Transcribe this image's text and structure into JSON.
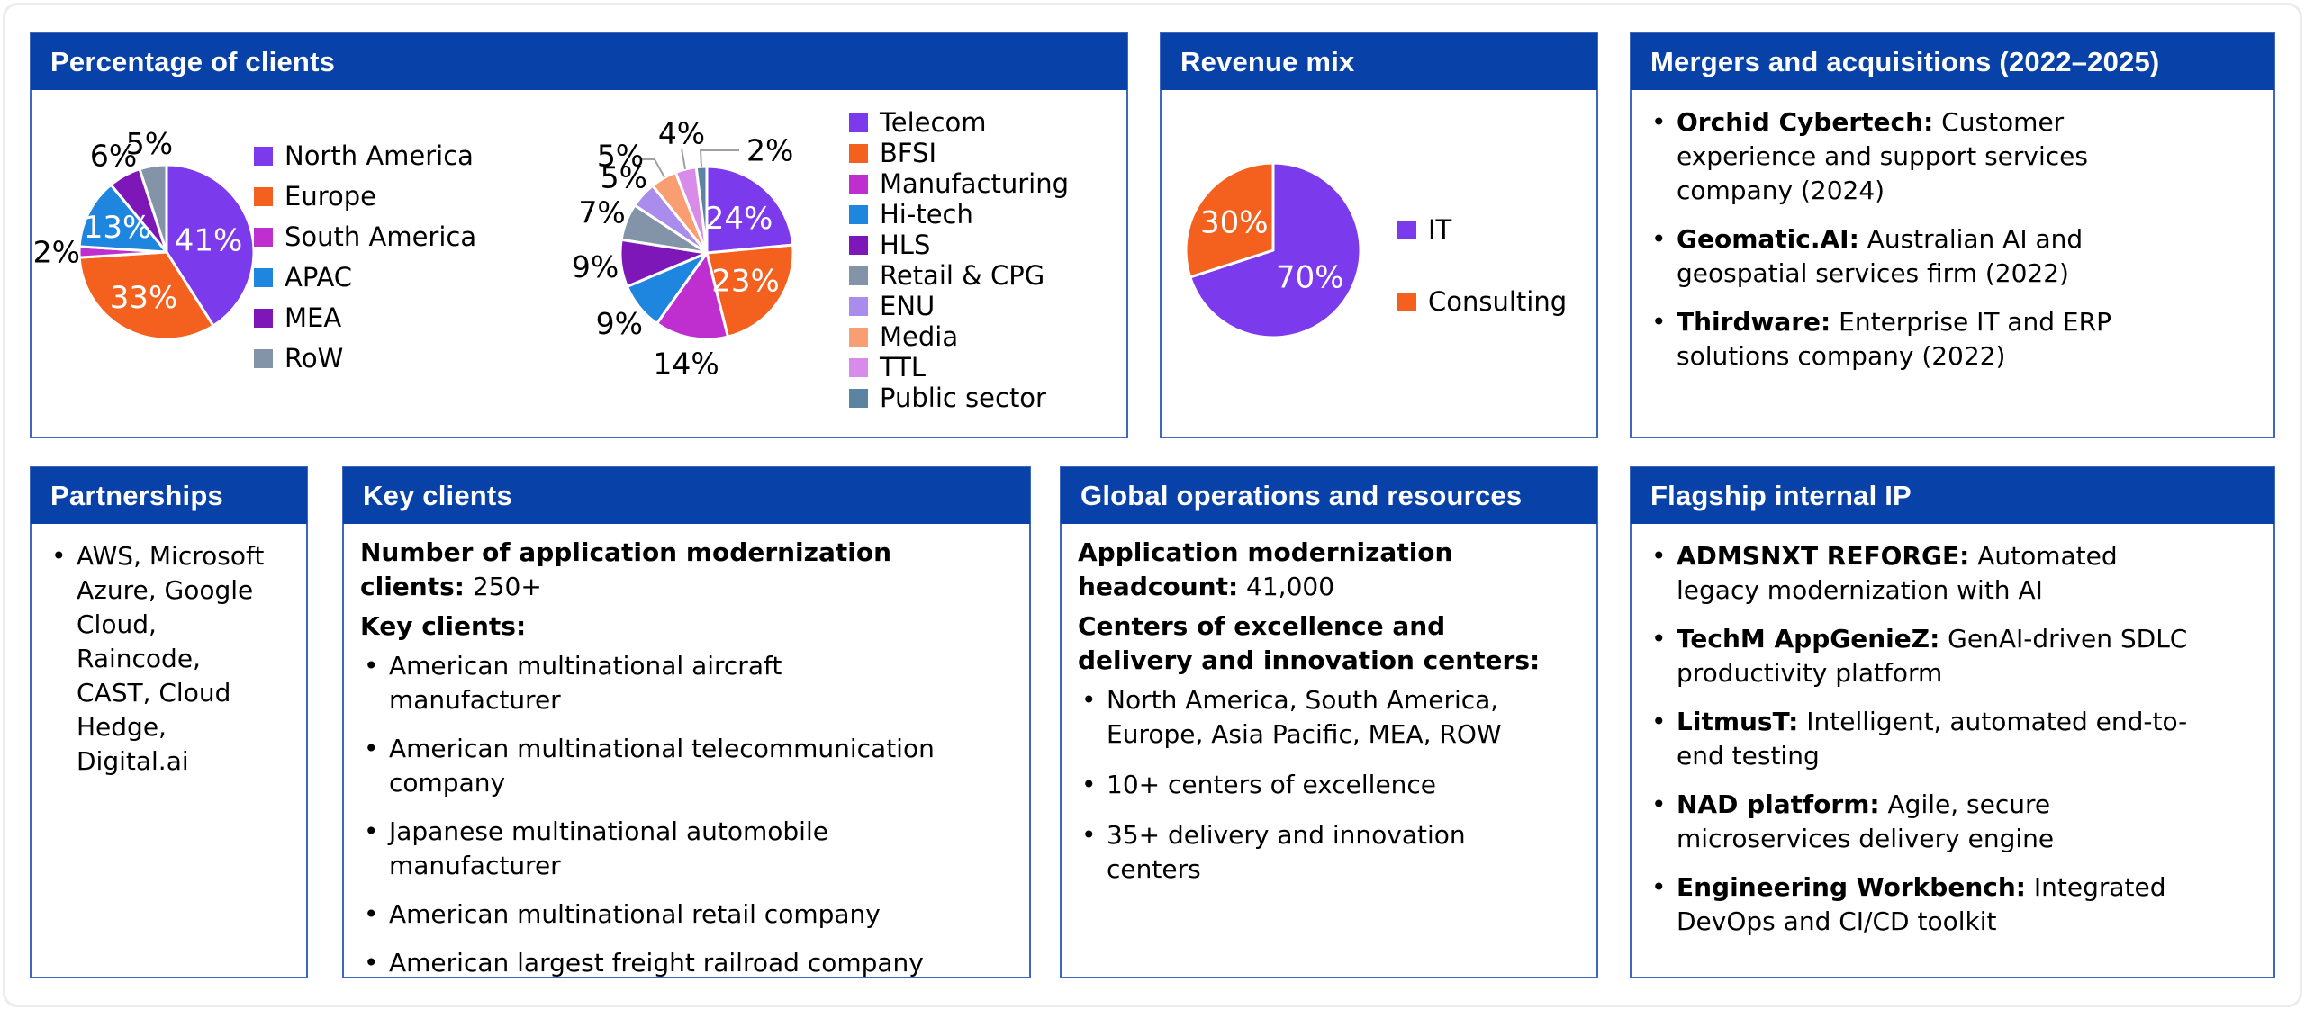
{
  "colors": {
    "header_blue": "#0841A8",
    "panel_border_blue": "#4067C0",
    "leader_line_gray": "#A0A0A0",
    "inside_label_white": "#ffffff",
    "text_black": "#000000"
  },
  "panels": {
    "clients": {
      "title": "Percentage of clients"
    },
    "revenue": {
      "title": "Revenue mix"
    },
    "mna": {
      "title": "Mergers and acquisitions (2022–2025)",
      "items": [
        {
          "b": "Orchid Cybertech:",
          "t": " Customer\nexperience and support services\ncompany (2024)"
        },
        {
          "b": "Geomatic.AI:",
          "t": " Australian AI and\ngeospatial services firm (2022)"
        },
        {
          "b": "Thirdware:",
          "t": " Enterprise IT and ERP\nsolutions company (2022)"
        }
      ]
    },
    "partnerships": {
      "title": "Partnerships",
      "items": [
        {
          "t": "AWS, Microsoft\nAzure, Google\nCloud,\nRaincode,\nCAST, Cloud\nHedge,\nDigital.ai"
        }
      ]
    },
    "key_clients": {
      "title": "Key clients",
      "lead": [
        {
          "b": "Number of application modernization\nclients:",
          "t": " 250+"
        },
        {
          "b": "Key clients:"
        }
      ],
      "items": [
        {
          "t": "American multinational aircraft\nmanufacturer"
        },
        {
          "t": "American multinational telecommunication\ncompany"
        },
        {
          "t": "Japanese multinational automobile\nmanufacturer"
        },
        {
          "t": "American multinational retail company"
        },
        {
          "t": "American largest freight railroad company"
        }
      ]
    },
    "global_ops": {
      "title": "Global operations and resources",
      "lead": [
        {
          "b": "Application modernization\nheadcount:",
          "t": " 41,000"
        },
        {
          "b": "Centers of excellence and\ndelivery and innovation centers:"
        }
      ],
      "items": [
        {
          "t": "North America, South America,\nEurope, Asia Pacific, MEA, ROW"
        },
        {
          "t": "10+ centers of excellence"
        },
        {
          "t": "35+ delivery and innovation\ncenters"
        }
      ]
    },
    "flagship": {
      "title": "Flagship internal IP",
      "items": [
        {
          "b": "ADMSNXT REFORGE:",
          "t": " Automated\nlegacy modernization with AI"
        },
        {
          "b": "TechM AppGenieZ:",
          "t": " GenAI-driven SDLC\nproductivity platform"
        },
        {
          "b": "LitmusT:",
          "t": " Intelligent, automated end-to-\nend testing"
        },
        {
          "b": "NAD platform:",
          "t": " Agile, secure\nmicroservices delivery engine"
        },
        {
          "b": "Engineering Workbench:",
          "t": " Integrated\nDevOps and CI/CD toolkit"
        }
      ]
    }
  },
  "chart_data": [
    {
      "id": "geography",
      "type": "pie",
      "title": "Percentage of clients by geography",
      "legend_position": "right",
      "slices": [
        {
          "label": "North America",
          "value": 41,
          "color": "#7C3AED",
          "label_inside": true
        },
        {
          "label": "Europe",
          "value": 33,
          "color": "#F4611E",
          "label_inside": true
        },
        {
          "label": "South America",
          "value": 2,
          "color": "#BF2FD0",
          "label_inside": false
        },
        {
          "label": "APAC",
          "value": 13,
          "color": "#1F86DF",
          "label_inside": true
        },
        {
          "label": "MEA",
          "value": 6,
          "color": "#7D17B8",
          "label_inside": false
        },
        {
          "label": "RoW",
          "value": 5,
          "color": "#8394A9",
          "label_inside": false
        }
      ]
    },
    {
      "id": "industry",
      "type": "pie",
      "title": "Percentage of clients by industry",
      "legend_position": "right",
      "slices": [
        {
          "label": "Telecom",
          "value": 24,
          "color": "#7C3AED",
          "label_inside": true
        },
        {
          "label": "BFSI",
          "value": 23,
          "color": "#F4611E",
          "label_inside": true
        },
        {
          "label": "Manufacturing",
          "value": 14,
          "color": "#BF2FD0",
          "label_inside": false
        },
        {
          "label": "Hi-tech",
          "value": 9,
          "color": "#1F86DF",
          "label_inside": false
        },
        {
          "label": "HLS",
          "value": 9,
          "color": "#7D17B8",
          "label_inside": false
        },
        {
          "label": "Retail & CPG",
          "value": 7,
          "color": "#8394A9",
          "label_inside": false
        },
        {
          "label": "ENU",
          "value": 5,
          "color": "#A98CEC",
          "label_inside": false
        },
        {
          "label": "Media",
          "value": 5,
          "color": "#F99D73",
          "label_inside": false,
          "leader": true
        },
        {
          "label": "TTL",
          "value": 4,
          "color": "#D88BE8",
          "label_inside": false,
          "leader": true
        },
        {
          "label": "Public sector",
          "value": 2,
          "color": "#5C84A0",
          "label_inside": false,
          "leader": true
        }
      ]
    },
    {
      "id": "revenue",
      "type": "pie",
      "title": "Revenue mix",
      "legend_position": "right",
      "slices": [
        {
          "label": "IT",
          "value": 70,
          "color": "#7C3AED",
          "label_inside": true
        },
        {
          "label": "Consulting",
          "value": 30,
          "color": "#F4611E",
          "label_inside": true
        }
      ]
    }
  ]
}
